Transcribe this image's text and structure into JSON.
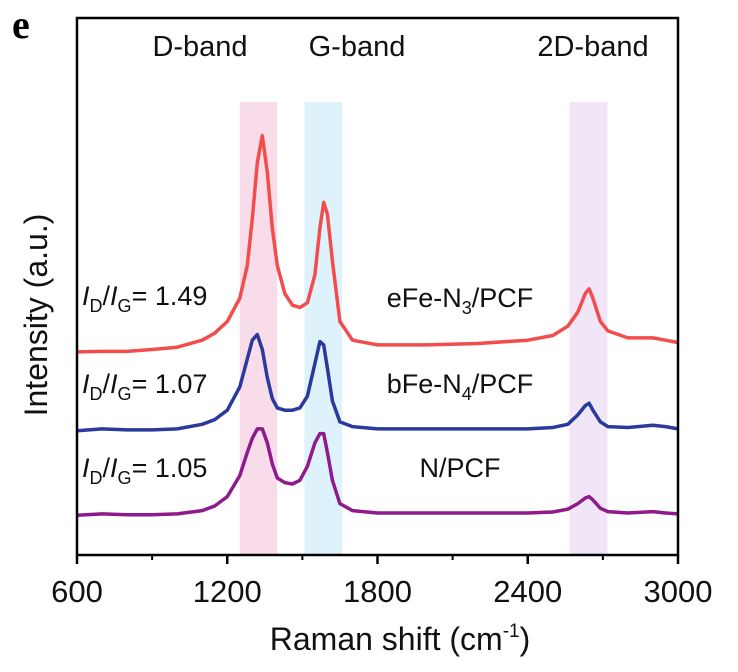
{
  "panel_label": "e",
  "chart_data": {
    "type": "line",
    "title": "",
    "xlabel": "Raman shift (cm",
    "xlabel_sup": "-1",
    "xlabel_close": ")",
    "ylabel": "Intensity (a.u.)",
    "xlim": [
      600,
      3000
    ],
    "ylim": [
      0,
      115
    ],
    "x_ticks": [
      600,
      1200,
      1800,
      2400,
      3000
    ],
    "x_tick_labels": [
      "600",
      "1200",
      "1800",
      "2400",
      "3000"
    ],
    "x_minor_ticks": [
      900,
      1500,
      2100,
      2700
    ],
    "y_ticks_shown": false,
    "grid": false,
    "bands": [
      {
        "label": "D-band",
        "range": [
          1250,
          1400
        ],
        "color": "#f9dcea"
      },
      {
        "label": "G-band",
        "range": [
          1508,
          1659
        ],
        "color": "#def2fb"
      },
      {
        "label": "2D-band",
        "range": [
          2566,
          2718
        ],
        "color": "#f1e6f8"
      }
    ],
    "x": [
      600,
      700,
      800,
      900,
      1000,
      1100,
      1150,
      1200,
      1250,
      1280,
      1300,
      1320,
      1340,
      1360,
      1380,
      1400,
      1430,
      1460,
      1490,
      1520,
      1550,
      1570,
      1585,
      1600,
      1620,
      1650,
      1700,
      1800,
      2000,
      2200,
      2400,
      2500,
      2560,
      2600,
      2630,
      2645,
      2660,
      2690,
      2720,
      2800,
      2900,
      2950,
      3000
    ],
    "series": [
      {
        "name_prefix": "eFe-N",
        "name_sub": "3",
        "name_suffix": "/PCF",
        "color": "#f24d4d",
        "ratio": {
          "sym1": "I",
          "sub1": "D",
          "slash": "/",
          "sym2": "I",
          "sub2": "G",
          "value": "= 1.49"
        },
        "values": [
          43.5,
          43.6,
          43.6,
          44,
          44.5,
          46,
          47.5,
          50,
          55,
          62,
          72,
          84,
          89.8,
          82,
          70,
          62,
          56,
          53.5,
          53,
          54,
          60,
          70,
          75.5,
          73,
          63,
          50,
          46,
          45,
          45,
          45.3,
          46,
          47,
          49,
          52,
          56,
          57,
          55,
          50,
          48,
          46.5,
          46.5,
          46,
          45.5
        ]
      },
      {
        "name_prefix": "bFe-N",
        "name_sub": "4",
        "name_suffix": "/PCF",
        "color": "#2a3a9c",
        "ratio": {
          "sym1": "I",
          "sub1": "D",
          "slash": "/",
          "sym2": "I",
          "sub2": "G",
          "value": "= 1.07"
        },
        "values": [
          26.6,
          27,
          26.8,
          26.8,
          27,
          28,
          29,
          31,
          36,
          42,
          46,
          47.2,
          44,
          38,
          33.5,
          31.5,
          31,
          31,
          31.5,
          34,
          41,
          45.7,
          45,
          40,
          33,
          28.5,
          27.5,
          27,
          27,
          27,
          27,
          27.3,
          28,
          30,
          32,
          32.5,
          31,
          28.5,
          27.5,
          27.3,
          27.8,
          27.5,
          27
        ]
      },
      {
        "name_prefix": "N/PCF",
        "name_sub": "",
        "name_suffix": "",
        "color": "#8e1a8c",
        "ratio": {
          "sym1": "I",
          "sub1": "D",
          "slash": "/",
          "sym2": "I",
          "sub2": "G",
          "value": "= 1.05"
        },
        "values": [
          8.5,
          8.8,
          8.6,
          8.6,
          8.8,
          9.5,
          10.5,
          12.5,
          17,
          22,
          25,
          27,
          27,
          24,
          19.5,
          16.5,
          15.5,
          15.2,
          16,
          19,
          24,
          26,
          26,
          22,
          16,
          11,
          9.5,
          9,
          9,
          9,
          9,
          9.2,
          9.8,
          11,
          12.2,
          12.5,
          11.8,
          10,
          9.3,
          9,
          9.3,
          9,
          8.8
        ]
      }
    ]
  }
}
